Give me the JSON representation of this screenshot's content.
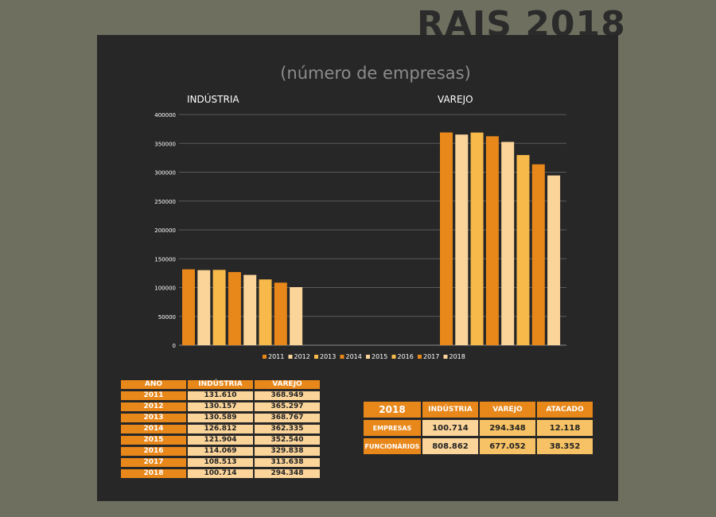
{
  "page": {
    "title": "RAIS 2018"
  },
  "chart_data": {
    "type": "bar",
    "title": "(número de empresas)",
    "categories": [
      "INDÚSTRIA",
      "VAREJO"
    ],
    "series": [
      {
        "name": "2011",
        "values": [
          131610,
          368949
        ],
        "color": "#e8871a"
      },
      {
        "name": "2012",
        "values": [
          130157,
          365297
        ],
        "color": "#fbd49a"
      },
      {
        "name": "2013",
        "values": [
          130589,
          368767
        ],
        "color": "#f6b94a"
      },
      {
        "name": "2014",
        "values": [
          126812,
          362335
        ],
        "color": "#e8871a"
      },
      {
        "name": "2015",
        "values": [
          121904,
          352540
        ],
        "color": "#fbd49a"
      },
      {
        "name": "2016",
        "values": [
          114069,
          329838
        ],
        "color": "#f6b94a"
      },
      {
        "name": "2017",
        "values": [
          108513,
          313638
        ],
        "color": "#e8871a"
      },
      {
        "name": "2018",
        "values": [
          100714,
          294348
        ],
        "color": "#fbd49a"
      }
    ],
    "ylim": [
      0,
      400000
    ],
    "yticks": [
      0,
      50000,
      100000,
      150000,
      200000,
      250000,
      300000,
      350000,
      400000
    ],
    "grid": true,
    "legend_position": "bottom"
  },
  "year_table": {
    "headers": [
      "ANO",
      "INDÚSTRIA",
      "VAREJO"
    ],
    "rows": [
      [
        "2011",
        "131.610",
        "368.949"
      ],
      [
        "2012",
        "130.157",
        "365.297"
      ],
      [
        "2013",
        "130.589",
        "368.767"
      ],
      [
        "2014",
        "126.812",
        "362.335"
      ],
      [
        "2015",
        "121.904",
        "352.540"
      ],
      [
        "2016",
        "114.069",
        "329.838"
      ],
      [
        "2017",
        "108.513",
        "313.638"
      ],
      [
        "2018",
        "100.714",
        "294.348"
      ]
    ]
  },
  "summary_table": {
    "corner": "2018",
    "headers": [
      "INDÚSTRIA",
      "VAREJO",
      "ATACADO"
    ],
    "rows": [
      {
        "label": "EMPRESAS",
        "values": [
          "100.714",
          "294.348",
          "12.118"
        ]
      },
      {
        "label": "FUNCIONÁRIOS",
        "values": [
          "808.862",
          "677.052",
          "38.352"
        ]
      }
    ]
  }
}
